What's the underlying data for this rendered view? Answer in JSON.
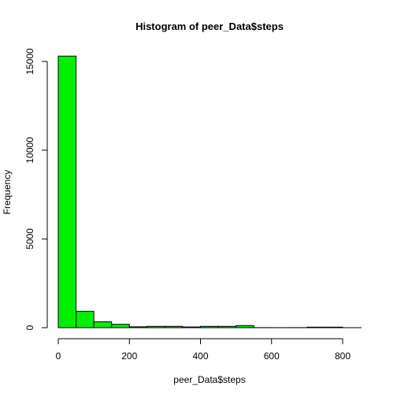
{
  "chart_data": {
    "type": "bar",
    "title": "Histogram of peer_Data$steps",
    "xlabel": "peer_Data$steps",
    "ylabel": "Frequency",
    "bar_color": "#00ee00",
    "bin_width": 50,
    "bins": [
      {
        "from": 0,
        "to": 50,
        "count": 15300
      },
      {
        "from": 50,
        "to": 100,
        "count": 920
      },
      {
        "from": 100,
        "to": 150,
        "count": 330
      },
      {
        "from": 150,
        "to": 200,
        "count": 190
      },
      {
        "from": 200,
        "to": 250,
        "count": 50
      },
      {
        "from": 250,
        "to": 300,
        "count": 75
      },
      {
        "from": 300,
        "to": 350,
        "count": 75
      },
      {
        "from": 350,
        "to": 400,
        "count": 40
      },
      {
        "from": 400,
        "to": 450,
        "count": 75
      },
      {
        "from": 450,
        "to": 500,
        "count": 75
      },
      {
        "from": 500,
        "to": 550,
        "count": 120
      },
      {
        "from": 550,
        "to": 600,
        "count": 5
      },
      {
        "from": 600,
        "to": 650,
        "count": 3
      },
      {
        "from": 650,
        "to": 700,
        "count": 5
      },
      {
        "from": 700,
        "to": 750,
        "count": 30
      },
      {
        "from": 750,
        "to": 800,
        "count": 30
      }
    ],
    "xlim": [
      0,
      800
    ],
    "ylim": [
      0,
      15300
    ],
    "xticks": [
      0,
      200,
      400,
      600,
      800
    ],
    "yticks": [
      0,
      5000,
      10000,
      15000
    ],
    "grid": false,
    "legend": "none"
  }
}
